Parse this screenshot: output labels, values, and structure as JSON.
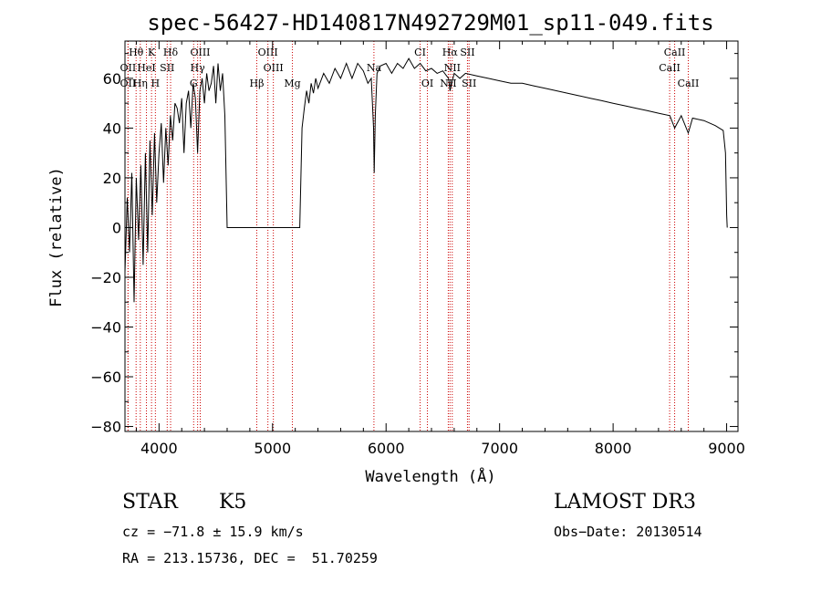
{
  "chart_data": {
    "type": "line",
    "title": "spec-56427-HD140817N492729M01_sp11-049.fits",
    "xlabel": "Wavelength (Å)",
    "ylabel": "Flux (relative)",
    "xlim": [
      3700,
      9100
    ],
    "ylim": [
      -82,
      75
    ],
    "xticks": [
      4000,
      5000,
      6000,
      7000,
      8000,
      9000
    ],
    "yticks": [
      -80,
      -60,
      -40,
      -20,
      0,
      20,
      40,
      60
    ],
    "series": [
      {
        "name": "flux",
        "x": [
          3700,
          3720,
          3740,
          3760,
          3780,
          3800,
          3820,
          3840,
          3860,
          3880,
          3900,
          3920,
          3940,
          3960,
          3980,
          4000,
          4020,
          4040,
          4060,
          4080,
          4100,
          4120,
          4140,
          4160,
          4180,
          4200,
          4220,
          4240,
          4260,
          4280,
          4300,
          4320,
          4340,
          4360,
          4380,
          4400,
          4420,
          4440,
          4460,
          4480,
          4500,
          4520,
          4540,
          4560,
          4580,
          4600,
          5240,
          5260,
          5280,
          5300,
          5320,
          5340,
          5360,
          5380,
          5400,
          5450,
          5500,
          5550,
          5600,
          5650,
          5700,
          5750,
          5800,
          5840,
          5870,
          5890,
          5895,
          5905,
          5920,
          5950,
          6000,
          6050,
          6100,
          6150,
          6200,
          6250,
          6300,
          6350,
          6400,
          6450,
          6500,
          6550,
          6563,
          6600,
          6650,
          6700,
          6800,
          6900,
          7000,
          7100,
          7200,
          7300,
          7400,
          7500,
          7600,
          7700,
          7800,
          7900,
          8000,
          8100,
          8200,
          8300,
          8400,
          8500,
          8542,
          8600,
          8662,
          8700,
          8800,
          8900,
          8970,
          8990,
          9000,
          9005
        ],
        "y": [
          -18,
          12,
          -10,
          22,
          -30,
          20,
          -5,
          25,
          -15,
          30,
          -10,
          35,
          5,
          38,
          10,
          30,
          42,
          18,
          40,
          25,
          45,
          35,
          50,
          48,
          42,
          52,
          30,
          50,
          55,
          40,
          58,
          52,
          30,
          55,
          60,
          50,
          62,
          55,
          58,
          65,
          50,
          66,
          55,
          62,
          45,
          0,
          0,
          40,
          48,
          55,
          50,
          58,
          54,
          60,
          56,
          62,
          58,
          64,
          60,
          66,
          60,
          66,
          63,
          58,
          60,
          40,
          22,
          45,
          62,
          65,
          66,
          62,
          66,
          64,
          68,
          64,
          66,
          63,
          64,
          62,
          63,
          60,
          55,
          62,
          60,
          62,
          61,
          60,
          59,
          58,
          58,
          57,
          56,
          55,
          54,
          53,
          52,
          51,
          50,
          49,
          48,
          47,
          46,
          45,
          40,
          45,
          38,
          44,
          43,
          41,
          39,
          30,
          5,
          0
        ]
      }
    ],
    "spectral_lines": [
      {
        "label": "Hθ",
        "x": 3798,
        "row": 1
      },
      {
        "label": "K",
        "x": 3934,
        "row": 1
      },
      {
        "label": "Hδ",
        "x": 4102,
        "row": 1
      },
      {
        "label": "OIII",
        "x": 4363,
        "row": 1
      },
      {
        "label": "OIII",
        "x": 4959,
        "row": 1
      },
      {
        "label": "CI",
        "x": 6300,
        "row": 1
      },
      {
        "label": "Hα",
        "x": 6563,
        "row": 1
      },
      {
        "label": "SII",
        "x": 6717,
        "row": 1
      },
      {
        "label": "CaII",
        "x": 8542,
        "row": 1
      },
      {
        "label": "OII",
        "x": 3727,
        "row": 2
      },
      {
        "label": "HeI",
        "x": 3889,
        "row": 2
      },
      {
        "label": "SII",
        "x": 4072,
        "row": 2
      },
      {
        "label": "Hγ",
        "x": 4340,
        "row": 2
      },
      {
        "label": "OIII",
        "x": 5007,
        "row": 2
      },
      {
        "label": "Na",
        "x": 5893,
        "row": 2
      },
      {
        "label": "NII",
        "x": 6583,
        "row": 2
      },
      {
        "label": "CaII",
        "x": 8498,
        "row": 2
      },
      {
        "label": "OII",
        "x": 3727,
        "row": 3
      },
      {
        "label": "Hη",
        "x": 3835,
        "row": 3
      },
      {
        "label": "H",
        "x": 3968,
        "row": 3
      },
      {
        "label": "G",
        "x": 4305,
        "row": 3
      },
      {
        "label": "Hβ",
        "x": 4861,
        "row": 3
      },
      {
        "label": "Mg",
        "x": 5175,
        "row": 3
      },
      {
        "label": "OI",
        "x": 6364,
        "row": 3
      },
      {
        "label": "NII",
        "x": 6548,
        "row": 3
      },
      {
        "label": "SII",
        "x": 6731,
        "row": 3
      },
      {
        "label": "CaII",
        "x": 8662,
        "row": 3
      }
    ]
  },
  "info": {
    "object_type": "STAR",
    "subclass": "K5",
    "survey": "LAMOST DR3",
    "cz": "cz = −71.8 ± 15.9 km/s",
    "obs_date": "Obs−Date: 20130514",
    "coords": "RA = 213.15736, DEC =  51.70259"
  },
  "colors": {
    "spectrum": "#000000",
    "line_markers": "#cc0000",
    "axes": "#000000"
  }
}
